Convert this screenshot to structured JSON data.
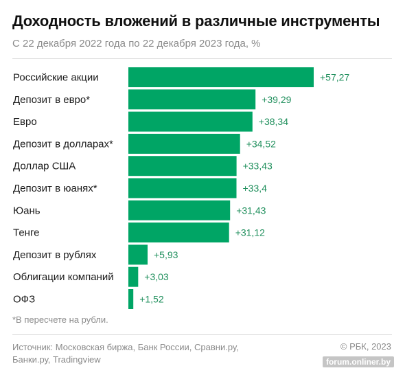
{
  "header": {
    "title": "Доходность вложений в различные инструменты",
    "subtitle": "С 22 декабря 2022 года по 22 декабря 2023 года, %"
  },
  "chart_data": {
    "type": "bar",
    "orientation": "horizontal",
    "title": "Доходность вложений в различные инструменты",
    "subtitle": "С 22 декабря 2022 года по 22 декабря 2023 года, %",
    "categories": [
      "Российские акции",
      "Депозит в евро*",
      "Евро",
      "Депозит в долларах*",
      "Доллар США",
      "Депозит в юанях*",
      "Юань",
      "Тенге",
      "Депозит в рублях",
      "Облигации компаний",
      "ОФЗ"
    ],
    "values": [
      57.27,
      39.29,
      38.34,
      34.52,
      33.43,
      33.4,
      31.43,
      31.12,
      5.93,
      3.03,
      1.52
    ],
    "value_labels": [
      "+57,27",
      "+39,29",
      "+38,34",
      "+34,52",
      "+33,43",
      "+33,4",
      "+31,43",
      "+31,12",
      "+5,93",
      "+3,03",
      "+1,52"
    ],
    "xlim": [
      0,
      57.27
    ],
    "bar_color": "#00a565",
    "label_color": "#1f8f5c",
    "grid": false,
    "legend": "none"
  },
  "footnote": "*В пересчете на рубли.",
  "source": "Источник: Московская биржа, Банк России, Сравни.ру, Банки.ру, Tradingview",
  "copyright": "© РБК, 2023",
  "watermark": "forum.onliner.by"
}
